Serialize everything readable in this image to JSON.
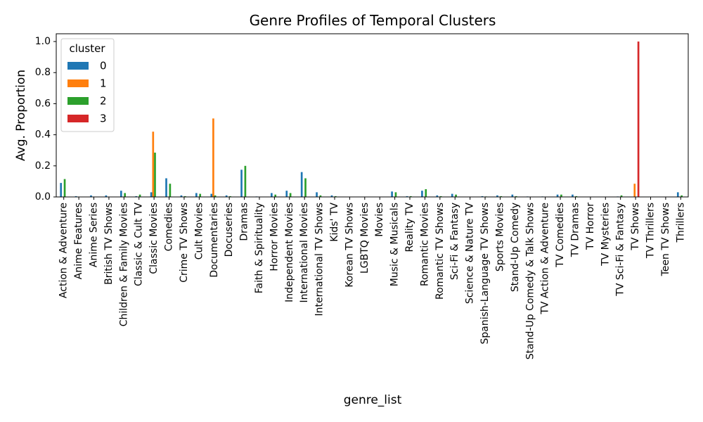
{
  "chart_data": {
    "type": "bar",
    "title": "Genre Profiles of Temporal Clusters",
    "xlabel": "genre_list",
    "ylabel": "Avg. Proportion",
    "ylim": [
      0,
      1.05
    ],
    "yticks": [
      "0.0",
      "0.2",
      "0.4",
      "0.6",
      "0.8",
      "1.0"
    ],
    "grid": false,
    "legend": {
      "title": "cluster",
      "placement": "top-left"
    },
    "categories": [
      "Action & Adventure",
      "Anime Features",
      "Anime Series",
      "British TV Shows",
      "Children & Family Movies",
      "Classic & Cult TV",
      "Classic Movies",
      "Comedies",
      "Crime TV Shows",
      "Cult Movies",
      "Documentaries",
      "Docuseries",
      "Dramas",
      "Faith & Spirituality",
      "Horror Movies",
      "Independent Movies",
      "International Movies",
      "International TV Shows",
      "Kids' TV",
      "Korean TV Shows",
      "LGBTQ Movies",
      "Movies",
      "Music & Musicals",
      "Reality TV",
      "Romantic Movies",
      "Romantic TV Shows",
      "Sci-Fi & Fantasy",
      "Science & Nature TV",
      "Spanish-Language TV Shows",
      "Sports Movies",
      "Stand-Up Comedy",
      "Stand-Up Comedy & Talk Shows",
      "TV Action & Adventure",
      "TV Comedies",
      "TV Dramas",
      "TV Horror",
      "TV Mysteries",
      "TV Sci-Fi & Fantasy",
      "TV Shows",
      "TV Thrillers",
      "Teen TV Shows",
      "Thrillers"
    ],
    "series": [
      {
        "name": "0",
        "color": "#1f77b4",
        "values": [
          0.09,
          0.005,
          0.01,
          0.01,
          0.04,
          0.005,
          0.03,
          0.12,
          0.01,
          0.025,
          0.02,
          0.01,
          0.175,
          0.003,
          0.025,
          0.04,
          0.16,
          0.03,
          0.01,
          0.002,
          0.002,
          0.002,
          0.035,
          0.005,
          0.04,
          0.01,
          0.02,
          0.002,
          0.005,
          0.01,
          0.015,
          0.003,
          0.003,
          0.015,
          0.015,
          0.002,
          0.002,
          0.003,
          0.0,
          0.002,
          0.002,
          0.03
        ]
      },
      {
        "name": "1",
        "color": "#ff7f0e",
        "values": [
          0.0,
          0.0,
          0.0,
          0.0,
          0.0,
          0.0,
          0.42,
          0.0,
          0.0,
          0.0,
          0.505,
          0.0,
          0.0,
          0.0,
          0.0,
          0.0,
          0.0,
          0.0,
          0.0,
          0.0,
          0.0,
          0.0,
          0.0,
          0.0,
          0.0,
          0.0,
          0.0,
          0.0,
          0.0,
          0.0,
          0.0,
          0.0,
          0.0,
          0.0,
          0.0,
          0.0,
          0.0,
          0.0,
          0.085,
          0.0,
          0.0,
          0.0
        ]
      },
      {
        "name": "2",
        "color": "#2ca02c",
        "values": [
          0.115,
          0.002,
          0.002,
          0.002,
          0.025,
          0.015,
          0.285,
          0.085,
          0.005,
          0.02,
          0.01,
          0.005,
          0.2,
          0.002,
          0.015,
          0.025,
          0.12,
          0.01,
          0.005,
          0.002,
          0.002,
          0.002,
          0.03,
          0.005,
          0.05,
          0.005,
          0.015,
          0.002,
          0.003,
          0.005,
          0.005,
          0.002,
          0.002,
          0.015,
          0.005,
          0.002,
          0.002,
          0.01,
          0.0,
          0.002,
          0.002,
          0.01
        ]
      },
      {
        "name": "3",
        "color": "#d62728",
        "values": [
          0,
          0,
          0,
          0,
          0,
          0,
          0,
          0,
          0,
          0,
          0,
          0,
          0,
          0,
          0,
          0,
          0,
          0,
          0,
          0,
          0,
          0,
          0,
          0,
          0,
          0,
          0,
          0,
          0,
          0,
          0,
          0,
          0,
          0,
          0,
          0,
          0,
          0,
          1.0,
          0,
          0,
          0
        ]
      }
    ]
  }
}
